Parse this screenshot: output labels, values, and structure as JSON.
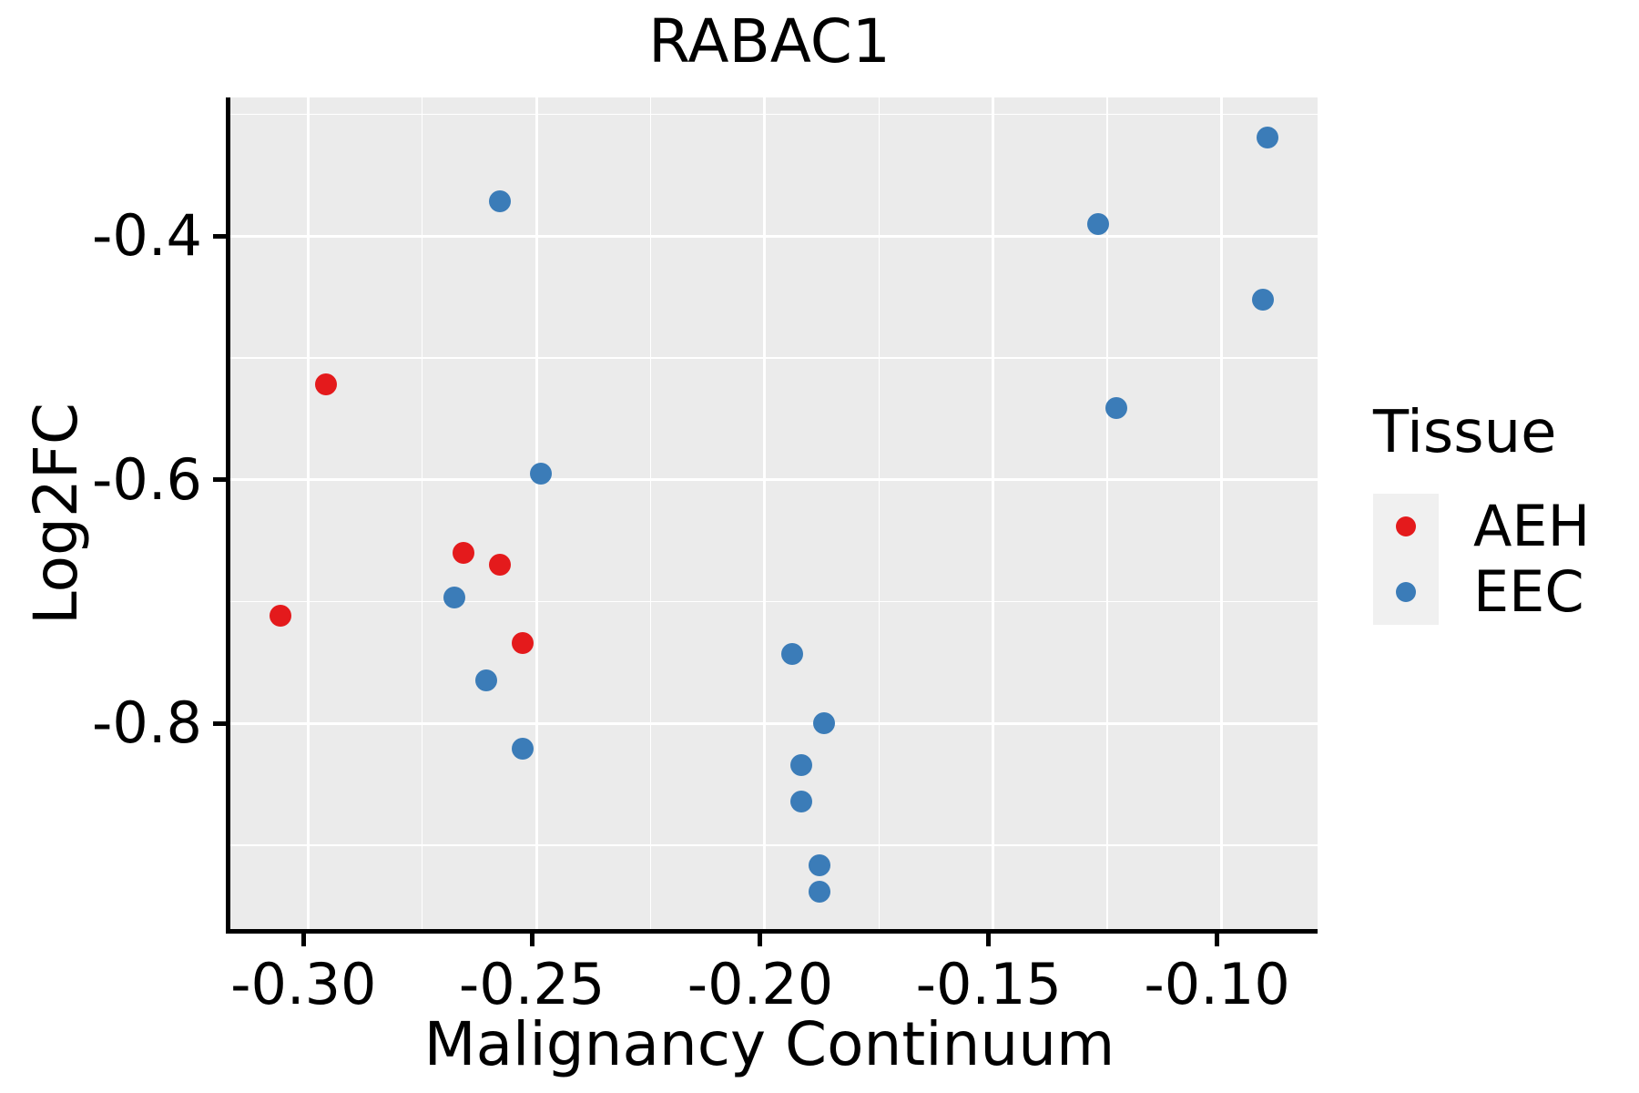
{
  "title": "RABAC1",
  "axes": {
    "x": {
      "label": "Malignancy Continuum",
      "ticks": [
        -0.3,
        -0.25,
        -0.2,
        -0.15,
        -0.1
      ],
      "tick_labels": [
        "-0.30",
        "-0.25",
        "-0.20",
        "-0.15",
        "-0.10"
      ],
      "minor_gridlines": [
        -0.275,
        -0.225,
        -0.175,
        -0.125
      ]
    },
    "y": {
      "label": "Log2FC",
      "ticks": [
        -0.4,
        -0.6,
        -0.8
      ],
      "tick_labels": [
        "-0.4",
        "-0.6",
        "-0.8"
      ],
      "minor_gridlines": [
        -0.3,
        -0.5,
        -0.7,
        -0.9
      ]
    }
  },
  "legend": {
    "title": "Tissue",
    "entries": [
      {
        "label": "AEH",
        "color": "#E41A1C"
      },
      {
        "label": "EEC",
        "color": "#3B7CB8"
      }
    ]
  },
  "colors": {
    "panel_background": "#EBEBEB",
    "gridline": "#FFFFFF",
    "axis_line": "#000000",
    "legend_key_background": "#F0F0F0",
    "aeh_red": "#E41A1C",
    "eec_blue": "#3B7CB8"
  },
  "chart_data": {
    "type": "scatter",
    "title": "RABAC1",
    "xlabel": "Malignancy Continuum",
    "ylabel": "Log2FC",
    "xlim": [
      -0.317,
      -0.079
    ],
    "ylim": [
      -0.969,
      -0.286
    ],
    "grid": "on",
    "legend_position": "right",
    "series": [
      {
        "name": "AEH",
        "color": "#E41A1C",
        "points": [
          [
            -0.296,
            -0.522
          ],
          [
            -0.306,
            -0.712
          ],
          [
            -0.266,
            -0.66
          ],
          [
            -0.258,
            -0.67
          ],
          [
            -0.253,
            -0.734
          ]
        ]
      },
      {
        "name": "EEC",
        "color": "#3B7CB8",
        "points": [
          [
            -0.258,
            -0.371
          ],
          [
            -0.249,
            -0.595
          ],
          [
            -0.268,
            -0.697
          ],
          [
            -0.261,
            -0.765
          ],
          [
            -0.253,
            -0.821
          ],
          [
            -0.194,
            -0.743
          ],
          [
            -0.187,
            -0.8
          ],
          [
            -0.192,
            -0.834
          ],
          [
            -0.192,
            -0.864
          ],
          [
            -0.188,
            -0.917
          ],
          [
            -0.188,
            -0.938
          ],
          [
            -0.09,
            -0.319
          ],
          [
            -0.127,
            -0.39
          ],
          [
            -0.091,
            -0.452
          ],
          [
            -0.123,
            -0.541
          ]
        ]
      }
    ]
  }
}
